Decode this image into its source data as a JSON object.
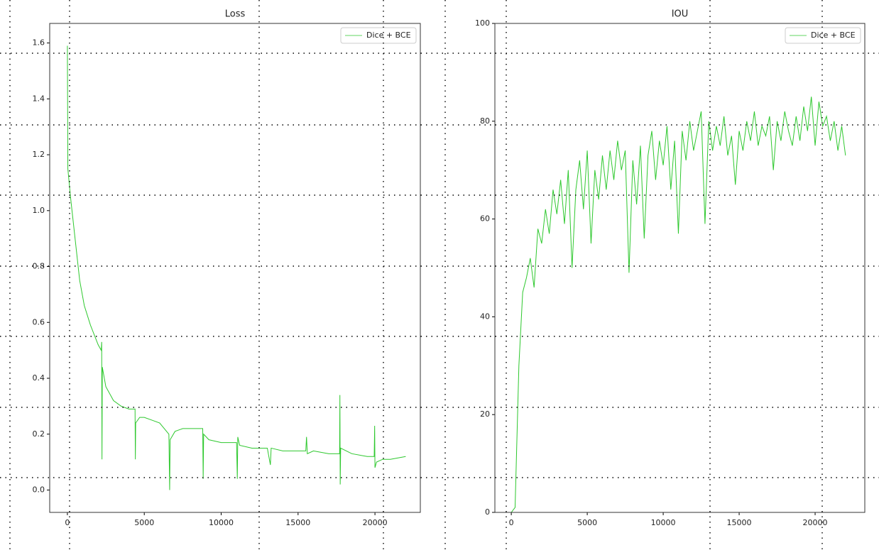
{
  "chart_data": [
    {
      "type": "line",
      "title": "Loss",
      "x": [
        0,
        30,
        200,
        500,
        800,
        1100,
        1500,
        2000,
        2200,
        2230,
        2250,
        2270,
        2500,
        3000,
        3500,
        4000,
        4400,
        4420,
        4440,
        4700,
        5000,
        5500,
        6000,
        6600,
        6650,
        6680,
        7000,
        7500,
        8000,
        8800,
        8830,
        8860,
        9200,
        10000,
        11000,
        11050,
        11080,
        11200,
        12000,
        13000,
        13200,
        13250,
        14000,
        15000,
        15500,
        15550,
        15600,
        16000,
        17000,
        17700,
        17720,
        17740,
        17770,
        18500,
        19500,
        19950,
        19980,
        20000,
        20100,
        20500,
        21000,
        22000
      ],
      "series": [
        {
          "name": "Dice + BCE",
          "color": "#2ec82e",
          "values": [
            1.59,
            1.15,
            1.05,
            0.9,
            0.75,
            0.66,
            0.59,
            0.52,
            0.5,
            0.53,
            0.11,
            0.44,
            0.37,
            0.32,
            0.3,
            0.29,
            0.29,
            0.11,
            0.24,
            0.26,
            0.26,
            0.25,
            0.24,
            0.2,
            0.0,
            0.18,
            0.21,
            0.22,
            0.22,
            0.22,
            0.04,
            0.2,
            0.18,
            0.17,
            0.17,
            0.04,
            0.19,
            0.16,
            0.15,
            0.15,
            0.09,
            0.15,
            0.14,
            0.14,
            0.14,
            0.19,
            0.13,
            0.14,
            0.13,
            0.13,
            0.34,
            0.02,
            0.15,
            0.13,
            0.12,
            0.12,
            0.23,
            0.08,
            0.1,
            0.11,
            0.11,
            0.12
          ]
        }
      ],
      "xlim": [
        -1150,
        22950
      ],
      "ylim": [
        -0.08,
        1.67
      ],
      "xticks": [
        0,
        5000,
        10000,
        15000,
        20000
      ],
      "yticks": [
        {
          "value": 0,
          "label": "0.0"
        },
        0.2,
        0.4,
        0.6,
        0.8,
        {
          "value": 1,
          "label": "1.0"
        },
        1.2,
        1.4,
        1.6
      ],
      "legend": "upper right",
      "grid": false
    },
    {
      "type": "line",
      "title": "IOU",
      "x": [
        0,
        250,
        500,
        750,
        1000,
        1250,
        1500,
        1750,
        2000,
        2250,
        2500,
        2750,
        3000,
        3250,
        3500,
        3750,
        4000,
        4250,
        4500,
        4750,
        5000,
        5250,
        5500,
        5750,
        6000,
        6250,
        6500,
        6750,
        7000,
        7250,
        7500,
        7750,
        8000,
        8250,
        8500,
        8750,
        9000,
        9250,
        9500,
        9750,
        10000,
        10250,
        10500,
        10750,
        11000,
        11250,
        11500,
        11750,
        12000,
        12250,
        12500,
        12750,
        13000,
        13250,
        13500,
        13750,
        14000,
        14250,
        14500,
        14750,
        15000,
        15250,
        15500,
        15750,
        16000,
        16250,
        16500,
        16750,
        17000,
        17250,
        17500,
        17750,
        18000,
        18250,
        18500,
        18750,
        19000,
        19250,
        19500,
        19750,
        20000,
        20250,
        20500,
        20750,
        21000,
        21250,
        21500,
        21750,
        22000
      ],
      "series": [
        {
          "name": "Dice + BCE",
          "color": "#2ec82e",
          "values": [
            0,
            1,
            30,
            45,
            48,
            52,
            46,
            58,
            55,
            62,
            57,
            66,
            61,
            68,
            59,
            70,
            50,
            66,
            72,
            62,
            74,
            55,
            70,
            64,
            73,
            66,
            74,
            68,
            76,
            70,
            74,
            49,
            72,
            63,
            75,
            56,
            73,
            78,
            68,
            76,
            71,
            79,
            66,
            76,
            57,
            78,
            72,
            80,
            74,
            78,
            82,
            59,
            80,
            74,
            79,
            75,
            81,
            73,
            77,
            67,
            78,
            74,
            80,
            76,
            82,
            75,
            79,
            77,
            81,
            70,
            80,
            76,
            82,
            78,
            75,
            81,
            76,
            83,
            78,
            85,
            75,
            84,
            79,
            81,
            76,
            80,
            74,
            79,
            73
          ]
        }
      ],
      "xlim": [
        -1080,
        23270
      ],
      "ylim": [
        0,
        100
      ],
      "xticks": [
        0,
        5000,
        10000,
        15000,
        20000
      ],
      "yticks": [
        0,
        20,
        40,
        60,
        80,
        100
      ],
      "legend": "upper right",
      "grid": false
    }
  ]
}
